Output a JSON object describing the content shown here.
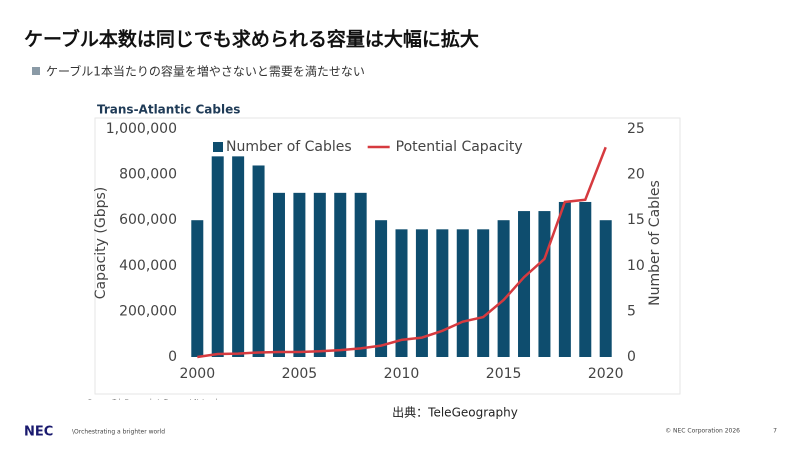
{
  "header": {
    "title": "ケーブル本数は同じでも求められる容量は大幅に拡大",
    "bullet": "ケーブル1本当たりの容量を増やさないと需要を満たせない"
  },
  "chart_data": {
    "type": "bar_line",
    "title": "Trans-Atlantic Cables",
    "source": "Source: TeleGeography's Transport Networks",
    "y_label": "Capacity (Gbps)",
    "y2_label": "Number of Cables",
    "x": [
      2000,
      2001,
      2002,
      2003,
      2004,
      2005,
      2006,
      2007,
      2008,
      2009,
      2010,
      2011,
      2012,
      2013,
      2014,
      2015,
      2016,
      2017,
      2018,
      2019,
      2020
    ],
    "xlim": [
      1999.3,
      2020.7
    ],
    "xticks": [
      2000,
      2005,
      2010,
      2015,
      2020
    ],
    "ylim": [
      0,
      1000000
    ],
    "yticks": [
      0,
      {
        "value": 200000,
        "label": "200,000"
      },
      {
        "value": 400000,
        "label": "400,000"
      },
      {
        "value": 600000,
        "label": "600,000"
      },
      {
        "value": 800000,
        "label": "800,000"
      },
      {
        "value": 1000000,
        "label": "1,000,000"
      }
    ],
    "y2lim": [
      0,
      25
    ],
    "y2ticks": [
      0,
      5,
      10,
      15,
      20,
      25
    ],
    "legend": "top",
    "series": [
      {
        "name": "Number of Cables",
        "type": "bar",
        "axis": "y2",
        "color": "#0e4d6e",
        "values": [
          15,
          22,
          22,
          21,
          18,
          18,
          18,
          18,
          18,
          15,
          14,
          14,
          14,
          14,
          14,
          15,
          16,
          16,
          17,
          17,
          15
        ]
      },
      {
        "name": "Potential Capacity",
        "type": "line",
        "color": "#d63a3f",
        "values": [
          0,
          13000,
          15000,
          20000,
          22000,
          22000,
          25000,
          30000,
          38000,
          50000,
          75000,
          85000,
          115000,
          155000,
          175000,
          250000,
          350000,
          430000,
          680000,
          690000,
          920000
        ]
      }
    ]
  },
  "caption": "出典：TeleGeography",
  "footer": {
    "logo": "NEC",
    "tagline": "\\Orchestrating a brighter world",
    "copyright": "© NEC Corporation 2026",
    "page": "7"
  }
}
